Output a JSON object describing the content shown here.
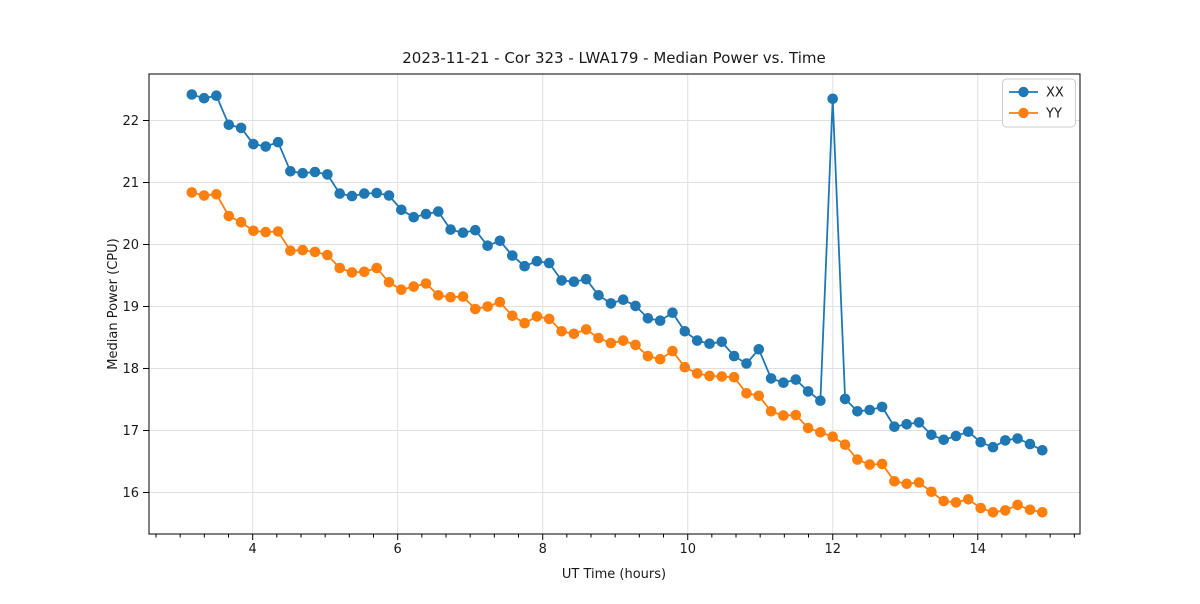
{
  "figure": {
    "title": "2023-11-21 - Cor 323 - LWA179 - Median Power vs. Time",
    "xlabel": "UT Time (hours)",
    "ylabel": "Median Power (CPU)"
  },
  "legend": {
    "position": "upper right",
    "items": [
      {
        "label": "XX",
        "color": "#1f77b4"
      },
      {
        "label": "YY",
        "color": "#ff7f0e"
      }
    ]
  },
  "chart_data": {
    "type": "line",
    "title": "2023-11-21 - Cor 323 - LWA179 - Median Power vs. Time",
    "xlabel": "UT Time (hours)",
    "ylabel": "Median Power (CPU)",
    "xlim": [
      2.57,
      15.41
    ],
    "ylim": [
      15.33,
      22.75
    ],
    "x_ticks": [
      4,
      6,
      8,
      10,
      12,
      14
    ],
    "y_ticks": [
      16,
      17,
      18,
      19,
      20,
      21,
      22
    ],
    "x_minor_tick_step": 0.3333,
    "grid": true,
    "grid_color": "#e0e0e0",
    "background": "#ffffff",
    "legend_position": "upper right",
    "marker": "circle",
    "x": [
      3.16,
      3.33,
      3.5,
      3.67,
      3.84,
      4.01,
      4.18,
      4.35,
      4.52,
      4.69,
      4.86,
      5.03,
      5.2,
      5.37,
      5.54,
      5.71,
      5.88,
      6.05,
      6.22,
      6.39,
      6.56,
      6.73,
      6.9,
      7.07,
      7.24,
      7.41,
      7.58,
      7.75,
      7.92,
      8.09,
      8.26,
      8.43,
      8.6,
      8.77,
      8.94,
      9.11,
      9.28,
      9.45,
      9.62,
      9.79,
      9.96,
      10.13,
      10.3,
      10.47,
      10.64,
      10.81,
      10.98,
      11.15,
      11.32,
      11.49,
      11.66,
      11.83,
      12.0,
      12.17,
      12.34,
      12.51,
      12.68,
      12.85,
      13.02,
      13.19,
      13.36,
      13.53,
      13.7,
      13.87,
      14.04,
      14.21,
      14.38,
      14.55,
      14.72,
      14.89
    ],
    "series": [
      {
        "name": "XX",
        "color": "#1f77b4",
        "values": [
          22.42,
          22.36,
          22.4,
          21.93,
          21.88,
          21.62,
          21.58,
          21.65,
          21.18,
          21.15,
          21.17,
          21.13,
          20.82,
          20.78,
          20.82,
          20.83,
          20.79,
          20.56,
          20.44,
          20.49,
          20.53,
          20.24,
          20.19,
          20.23,
          19.98,
          20.06,
          19.82,
          19.65,
          19.73,
          19.7,
          19.42,
          19.4,
          19.44,
          19.18,
          19.05,
          19.11,
          19.01,
          18.81,
          18.77,
          18.9,
          18.6,
          18.45,
          18.4,
          18.43,
          18.2,
          18.08,
          18.31,
          17.84,
          17.77,
          17.82,
          17.63,
          17.48,
          22.35,
          17.51,
          17.31,
          17.33,
          17.38,
          17.06,
          17.1,
          17.13,
          16.93,
          16.85,
          16.91,
          16.98,
          16.81,
          16.73,
          16.84,
          16.87,
          16.78,
          16.68
        ]
      },
      {
        "name": "YY",
        "color": "#ff7f0e",
        "values": [
          20.84,
          20.79,
          20.81,
          20.46,
          20.36,
          20.22,
          20.2,
          20.21,
          19.9,
          19.91,
          19.88,
          19.83,
          19.62,
          19.55,
          19.56,
          19.62,
          19.39,
          19.27,
          19.32,
          19.37,
          19.18,
          19.15,
          19.16,
          18.96,
          19.0,
          19.07,
          18.85,
          18.73,
          18.84,
          18.8,
          18.6,
          18.56,
          18.63,
          18.49,
          18.41,
          18.45,
          18.38,
          18.2,
          18.15,
          18.28,
          18.02,
          17.92,
          17.88,
          17.87,
          17.86,
          17.6,
          17.56,
          17.31,
          17.24,
          17.25,
          17.04,
          16.97,
          16.9,
          16.77,
          16.53,
          16.45,
          16.46,
          16.18,
          16.14,
          16.16,
          16.01,
          15.86,
          15.84,
          15.89,
          15.75,
          15.68,
          15.71,
          15.8,
          15.72,
          15.68
        ]
      }
    ]
  }
}
